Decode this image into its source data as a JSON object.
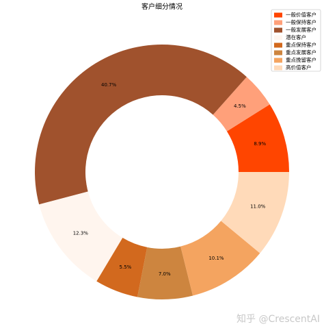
{
  "chart_data": {
    "type": "pie",
    "title": "客户细分情况",
    "categories": [
      "一般价值客户",
      "一般保持客户",
      "一般发展客户",
      "潜在客户",
      "重点保持客户",
      "重点发展客户",
      "重点挽留客户",
      "高价值客户"
    ],
    "values": [
      8.9,
      4.5,
      40.7,
      12.3,
      5.5,
      7.0,
      10.1,
      11.0
    ],
    "value_labels": [
      "8.9%",
      "4.5%",
      "40.7%",
      "12.3%",
      "5.5%",
      "7.0%",
      "10.1%",
      "11.0%"
    ],
    "colors": [
      "#ff4500",
      "#ffa07a",
      "#a0522d",
      "#fff5ee",
      "#d2691e",
      "#cd853f",
      "#f4a460",
      "#ffdab9"
    ],
    "legend": "upper right",
    "watermark": "知乎 @CrescentAI"
  }
}
